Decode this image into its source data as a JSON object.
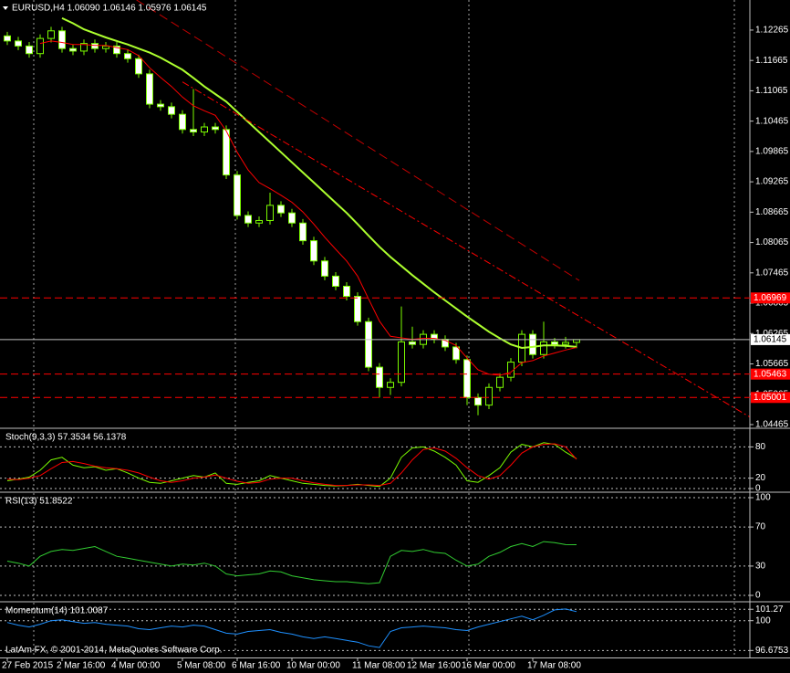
{
  "chart_data": [
    {
      "type": "candlestick",
      "title": "EURUSD,H4  1.06090 1.06146 1.05976 1.06145",
      "categories": [
        "27 Feb 2015",
        null,
        null,
        null,
        null,
        "2 Mar 16:00",
        null,
        null,
        null,
        null,
        "4 Mar 00:00",
        null,
        null,
        null,
        null,
        null,
        "5 Mar 08:00",
        null,
        null,
        null,
        null,
        "6 Mar 16:00",
        null,
        null,
        null,
        null,
        "10 Mar 00:00",
        null,
        null,
        null,
        null,
        null,
        "11 Mar 08:00",
        null,
        null,
        null,
        null,
        "12 Mar 16:00",
        null,
        null,
        null,
        null,
        "16 Mar 00:00",
        null,
        null,
        null,
        null,
        null,
        "17 Mar 08:00",
        null,
        null,
        null,
        null
      ],
      "open": [
        1.1215,
        1.1205,
        1.1195,
        1.118,
        1.121,
        1.1225,
        1.119,
        1.1185,
        1.12,
        1.119,
        1.1195,
        1.118,
        1.117,
        1.114,
        1.108,
        1.1075,
        1.106,
        1.103,
        1.1025,
        1.1035,
        1.103,
        1.094,
        1.086,
        1.0845,
        1.085,
        1.088,
        1.0865,
        1.0845,
        1.081,
        1.077,
        1.074,
        1.072,
        1.07,
        1.065,
        1.056,
        1.052,
        1.053,
        1.061,
        1.0605,
        1.0625,
        1.0615,
        1.06,
        1.0575,
        1.05,
        1.0485,
        1.052,
        1.054,
        1.057,
        1.0625,
        1.0585,
        1.061,
        1.0605,
        1.0609
      ],
      "high": [
        1.1223,
        1.1213,
        1.1203,
        1.1218,
        1.1233,
        1.1233,
        1.1198,
        1.1208,
        1.1208,
        1.1203,
        1.1203,
        1.1188,
        1.1178,
        1.1148,
        1.1088,
        1.1083,
        1.1068,
        1.111,
        1.1043,
        1.1043,
        1.1038,
        1.0948,
        1.0868,
        1.0858,
        1.0905,
        1.0888,
        1.0873,
        1.0853,
        1.0818,
        1.0778,
        1.0748,
        1.0728,
        1.0708,
        1.0658,
        1.0568,
        1.0538,
        1.068,
        1.064,
        1.0633,
        1.0633,
        1.0623,
        1.0608,
        1.0583,
        1.0508,
        1.0528,
        1.0548,
        1.0578,
        1.0633,
        1.0633,
        1.065,
        1.0618,
        1.062,
        1.06146
      ],
      "low": [
        1.1197,
        1.1187,
        1.1172,
        1.1172,
        1.1202,
        1.1182,
        1.1177,
        1.1177,
        1.1182,
        1.1182,
        1.1172,
        1.1162,
        1.1132,
        1.1072,
        1.1067,
        1.1052,
        1.1022,
        1.1017,
        1.1017,
        1.1022,
        1.0932,
        1.0852,
        1.0837,
        1.0837,
        1.0842,
        1.0857,
        1.0837,
        1.0802,
        1.0762,
        1.0732,
        1.0712,
        1.0692,
        1.0642,
        1.0552,
        1.05,
        1.0505,
        1.0522,
        1.0597,
        1.0597,
        1.0607,
        1.0592,
        1.0567,
        1.0485,
        1.0465,
        1.0477,
        1.0512,
        1.0532,
        1.0562,
        1.0577,
        1.0577,
        1.0597,
        1.0597,
        1.05976
      ],
      "close": [
        1.1205,
        1.1195,
        1.118,
        1.121,
        1.1225,
        1.119,
        1.1185,
        1.12,
        1.119,
        1.1195,
        1.118,
        1.117,
        1.114,
        1.108,
        1.1075,
        1.106,
        1.103,
        1.1025,
        1.1035,
        1.103,
        1.094,
        1.086,
        1.0845,
        1.085,
        1.088,
        1.0865,
        1.0845,
        1.081,
        1.077,
        1.074,
        1.072,
        1.07,
        1.065,
        1.056,
        1.052,
        1.053,
        1.061,
        1.0605,
        1.0625,
        1.0615,
        1.06,
        1.0575,
        1.05,
        1.0485,
        1.052,
        1.054,
        1.057,
        1.0625,
        1.0585,
        1.061,
        1.0605,
        1.0609,
        1.06145
      ],
      "candle_stroke": "#7cfc00",
      "bull_fill": "#000000",
      "bear_fill": "#ffffff",
      "series": [
        {
          "color": "#adff2f",
          "width": 2,
          "values": [
            null,
            null,
            null,
            null,
            null,
            1.125,
            1.124,
            1.1228,
            1.122,
            1.1212,
            1.1205,
            1.1198,
            1.119,
            1.1182,
            1.1172,
            1.116,
            1.1148,
            1.1132,
            1.1115,
            1.11,
            1.1085,
            1.1065,
            1.1045,
            1.1025,
            1.1005,
            1.0985,
            1.0965,
            1.0945,
            1.0925,
            1.0905,
            1.0885,
            1.0865,
            1.0843,
            1.082,
            1.0798,
            1.0778,
            1.076,
            1.0742,
            1.0725,
            1.0708,
            1.0692,
            1.0676,
            1.066,
            1.0645,
            1.063,
            1.0617,
            1.0605,
            1.0598,
            1.06,
            1.0603,
            1.0603,
            1.0602,
            1.06
          ]
        },
        {
          "color": "#ff0000",
          "width": 1,
          "values": [
            null,
            null,
            null,
            1.12,
            1.1205,
            1.1202,
            1.1198,
            1.1198,
            1.1196,
            1.1196,
            1.1192,
            1.1188,
            1.1176,
            1.1152,
            1.1133,
            1.1115,
            1.1094,
            1.1077,
            1.1067,
            1.1058,
            1.1027,
            1.0985,
            1.095,
            1.0925,
            1.0913,
            1.09,
            1.0886,
            1.0867,
            1.0843,
            1.0817,
            1.0793,
            1.077,
            1.074,
            1.0695,
            1.0651,
            1.0621,
            1.0618,
            1.0615,
            1.0617,
            1.0617,
            1.0613,
            1.0603,
            1.0578,
            1.0555,
            1.0546,
            1.0544,
            1.055,
            1.0569,
            1.0573,
            1.0582,
            1.0588,
            1.0594,
            1.0599
          ]
        }
      ],
      "lines": [
        {
          "color": "#c00000",
          "dash": "10,5",
          "x": [
            11.8,
            52.25
          ],
          "values": [
            1.12862,
            1.07314
          ]
        },
        {
          "color": "#ff0000",
          "dash": "8,3,2,3",
          "x": [
            16,
            67.8
          ],
          "values": [
            1.11241,
            1.04617
          ]
        }
      ],
      "levels": [
        {
          "value": 1.06969,
          "color": "#ff0000"
        },
        {
          "value": 1.05463,
          "color": "#ff0000"
        },
        {
          "value": 1.05001,
          "color": "#ff0000"
        }
      ],
      "last_price": {
        "value": 1.06145,
        "color": "#c0c0c0"
      },
      "ylim": [
        1.0441,
        1.1286
      ],
      "yticks": [
        1.12265,
        1.11665,
        1.11065,
        1.10465,
        1.09865,
        1.09265,
        1.08665,
        1.08065,
        1.07465,
        1.06865,
        1.06265,
        1.05665,
        1.05065,
        1.04465
      ]
    },
    {
      "type": "line",
      "title": "Stoch(9,3,3) 57.3534 56.1378",
      "grid": true,
      "series": [
        {
          "color": "#7cfc00",
          "width": 1,
          "values": [
            15,
            18,
            22,
            35,
            55,
            60,
            45,
            40,
            42,
            35,
            38,
            30,
            20,
            12,
            10,
            15,
            20,
            25,
            22,
            30,
            10,
            8,
            12,
            15,
            25,
            20,
            15,
            10,
            8,
            6,
            5,
            6,
            8,
            6,
            4,
            20,
            60,
            78,
            80,
            72,
            60,
            45,
            15,
            12,
            25,
            40,
            70,
            85,
            80,
            88,
            85,
            70,
            57.35
          ]
        },
        {
          "color": "#ff0000",
          "width": 1,
          "values": [
            18,
            17,
            20,
            25,
            38,
            50,
            52,
            48,
            43,
            40,
            38,
            35,
            30,
            22,
            15,
            12,
            15,
            20,
            22,
            26,
            20,
            14,
            10,
            12,
            18,
            20,
            20,
            15,
            11,
            8,
            6,
            6,
            7,
            7,
            6,
            10,
            30,
            55,
            75,
            78,
            72,
            58,
            40,
            25,
            18,
            25,
            45,
            68,
            80,
            85,
            86,
            80,
            56.14
          ]
        }
      ],
      "ylim": [
        0,
        100
      ],
      "yticks": [
        0,
        20,
        80
      ]
    },
    {
      "type": "line",
      "title": "RSI(13) 51.8522",
      "grid": true,
      "series": [
        {
          "color": "#32cd32",
          "width": 1,
          "values": [
            35,
            33,
            30,
            40,
            45,
            47,
            46,
            48,
            50,
            45,
            40,
            38,
            36,
            34,
            32,
            30,
            32,
            31,
            33,
            30,
            22,
            20,
            21,
            22,
            25,
            24,
            20,
            18,
            16,
            15,
            14,
            14,
            13,
            12,
            13,
            40,
            46,
            45,
            47,
            44,
            43,
            36,
            30,
            32,
            40,
            44,
            50,
            53,
            50,
            55,
            54,
            52,
            51.85
          ]
        }
      ],
      "ylim": [
        0,
        100
      ],
      "yticks": [
        0,
        30,
        70,
        100
      ]
    },
    {
      "type": "line",
      "title": "Momentum(14) 101.0087",
      "grid": true,
      "series": [
        {
          "color": "#1e90ff",
          "width": 1,
          "values": [
            99.8,
            99.5,
            99.3,
            99.6,
            100,
            100.1,
            99.9,
            99.7,
            99.8,
            99.6,
            99.5,
            99.4,
            99.1,
            99.0,
            99.2,
            99.4,
            99.3,
            99.5,
            99.4,
            99.0,
            98.6,
            98.5,
            98.8,
            98.9,
            99.0,
            98.7,
            98.5,
            98.2,
            98.0,
            98.2,
            98.0,
            97.8,
            97.6,
            97.2,
            97.0,
            98.8,
            99.2,
            99.3,
            99.4,
            99.3,
            99.2,
            99.0,
            98.9,
            99.3,
            99.6,
            99.9,
            100.2,
            100.5,
            100.1,
            100.6,
            101.2,
            101.3,
            101.0087
          ]
        }
      ],
      "ylim": [
        96.3,
        101.6
      ],
      "yticks": [
        96.6753,
        100,
        101.27
      ]
    }
  ],
  "copyright": "LatAm FX, © 2001-2014, MetaQuotes Software Corp."
}
